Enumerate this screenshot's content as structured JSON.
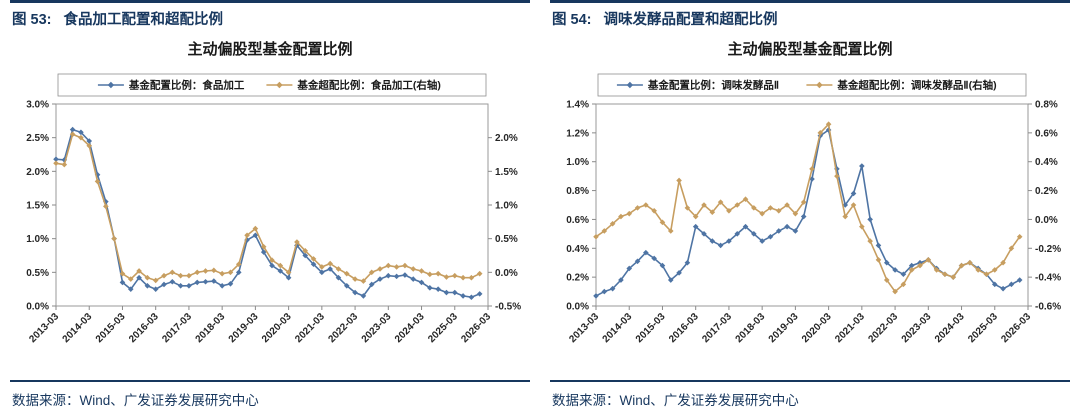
{
  "figures": [
    {
      "number": "图 53:",
      "caption": "食品加工配置和超配比例",
      "source": "数据来源：Wind、广发证券发展研究中心"
    },
    {
      "number": "图 54:",
      "caption": "调味发酵品配置和超配比例",
      "source": "数据来源：Wind、广发证券发展研究中心"
    }
  ],
  "colors": {
    "accent_navy": "#17375e",
    "series_blue": "#4e74a4",
    "series_tan": "#c79e60"
  },
  "chart_data": [
    {
      "type": "line",
      "title": "主动偏股型基金配置比例",
      "legend_position": "top",
      "grid": false,
      "x_axis": {
        "domain": [
          0,
          52
        ],
        "tick_positions": [
          0,
          4,
          8,
          12,
          16,
          20,
          24,
          28,
          32,
          36,
          40,
          44,
          48,
          52
        ],
        "tick_labels": [
          "2013-03",
          "2014-03",
          "2015-03",
          "2016-03",
          "2017-03",
          "2018-03",
          "2019-03",
          "2020-03",
          "2021-03",
          "2022-03",
          "2023-03",
          "2024-03",
          "2025-03",
          "2026-03"
        ]
      },
      "left_axis": {
        "min": 0.0,
        "max": 3.0,
        "tick_values": [
          3.0,
          2.5,
          2.0,
          1.5,
          1.0,
          0.5,
          0.0
        ],
        "tick_labels": [
          "3.0%",
          "2.5%",
          "2.0%",
          "1.5%",
          "1.0%",
          "0.5%",
          "0.0%"
        ]
      },
      "right_axis": {
        "min": -0.5,
        "max": 2.5,
        "tick_values": [
          2.0,
          1.5,
          1.0,
          0.5,
          0.0,
          -0.5
        ],
        "tick_labels": [
          "2.0%",
          "1.5%",
          "1.0%",
          "0.5%",
          "0.0%",
          "-0.5%"
        ]
      },
      "series": [
        {
          "name": "基金配置比例：食品加工",
          "axis": "left",
          "color": "#4e74a4",
          "marker": "diamond",
          "values": [
            2.18,
            2.17,
            2.62,
            2.58,
            2.45,
            1.95,
            1.55,
            1.0,
            0.35,
            0.25,
            0.42,
            0.3,
            0.25,
            0.32,
            0.36,
            0.3,
            0.3,
            0.35,
            0.36,
            0.37,
            0.3,
            0.33,
            0.5,
            0.98,
            1.05,
            0.8,
            0.6,
            0.52,
            0.42,
            0.9,
            0.75,
            0.62,
            0.5,
            0.55,
            0.42,
            0.3,
            0.2,
            0.15,
            0.32,
            0.4,
            0.45,
            0.44,
            0.46,
            0.4,
            0.35,
            0.27,
            0.25,
            0.2,
            0.2,
            0.15,
            0.13,
            0.18
          ]
        },
        {
          "name": "基金超配比例：食品加工(右轴)",
          "axis": "right",
          "color": "#c79e60",
          "marker": "diamond",
          "values": [
            1.62,
            1.6,
            2.05,
            2.0,
            1.88,
            1.35,
            0.98,
            0.5,
            -0.02,
            -0.1,
            0.02,
            -0.08,
            -0.12,
            -0.05,
            0.0,
            -0.05,
            -0.05,
            0.0,
            0.02,
            0.03,
            -0.02,
            0.0,
            0.12,
            0.55,
            0.65,
            0.38,
            0.18,
            0.1,
            0.0,
            0.45,
            0.32,
            0.2,
            0.08,
            0.13,
            0.05,
            -0.02,
            -0.1,
            -0.13,
            0.0,
            0.05,
            0.1,
            0.08,
            0.1,
            0.05,
            0.02,
            -0.03,
            -0.02,
            -0.07,
            -0.05,
            -0.08,
            -0.08,
            -0.02
          ]
        }
      ]
    },
    {
      "type": "line",
      "title": "主动偏股型基金配置比例",
      "legend_position": "top",
      "grid": false,
      "x_axis": {
        "domain": [
          0,
          52
        ],
        "tick_positions": [
          0,
          4,
          8,
          12,
          16,
          20,
          24,
          28,
          32,
          36,
          40,
          44,
          48,
          52
        ],
        "tick_labels": [
          "2013-03",
          "2014-03",
          "2015-03",
          "2016-03",
          "2017-03",
          "2018-03",
          "2019-03",
          "2020-03",
          "2021-03",
          "2022-03",
          "2023-03",
          "2024-03",
          "2025-03",
          "2026-03"
        ]
      },
      "left_axis": {
        "min": 0.0,
        "max": 1.4,
        "tick_values": [
          1.4,
          1.2,
          1.0,
          0.8,
          0.6,
          0.4,
          0.2,
          0.0
        ],
        "tick_labels": [
          "1.4%",
          "1.2%",
          "1.0%",
          "0.8%",
          "0.6%",
          "0.4%",
          "0.2%",
          "0.0%"
        ]
      },
      "right_axis": {
        "min": -0.6,
        "max": 0.8,
        "tick_values": [
          0.8,
          0.6,
          0.4,
          0.2,
          0.0,
          -0.2,
          -0.4,
          -0.6
        ],
        "tick_labels": [
          "0.8%",
          "0.6%",
          "0.4%",
          "0.2%",
          "0.0%",
          "-0.2%",
          "-0.4%",
          "-0.6%"
        ]
      },
      "series": [
        {
          "name": "基金配置比例：调味发酵品Ⅱ",
          "axis": "left",
          "color": "#4e74a4",
          "marker": "diamond",
          "values": [
            0.07,
            0.1,
            0.12,
            0.18,
            0.26,
            0.31,
            0.37,
            0.33,
            0.28,
            0.18,
            0.23,
            0.3,
            0.55,
            0.5,
            0.45,
            0.42,
            0.45,
            0.5,
            0.55,
            0.5,
            0.45,
            0.48,
            0.52,
            0.55,
            0.52,
            0.62,
            0.88,
            1.18,
            1.22,
            0.95,
            0.7,
            0.78,
            0.97,
            0.6,
            0.42,
            0.3,
            0.25,
            0.22,
            0.28,
            0.3,
            0.32,
            0.26,
            0.22,
            0.2,
            0.28,
            0.3,
            0.26,
            0.22,
            0.15,
            0.12,
            0.15,
            0.18
          ]
        },
        {
          "name": "基金超配比例：调味发酵品Ⅱ(右轴)",
          "axis": "right",
          "color": "#c79e60",
          "marker": "diamond",
          "values": [
            -0.12,
            -0.08,
            -0.03,
            0.02,
            0.04,
            0.08,
            0.1,
            0.06,
            -0.02,
            -0.08,
            0.27,
            0.08,
            0.02,
            0.1,
            0.05,
            0.12,
            0.06,
            0.1,
            0.14,
            0.08,
            0.04,
            0.08,
            0.06,
            0.1,
            0.04,
            0.12,
            0.35,
            0.6,
            0.66,
            0.3,
            0.02,
            0.1,
            -0.05,
            -0.15,
            -0.28,
            -0.42,
            -0.5,
            -0.45,
            -0.35,
            -0.32,
            -0.28,
            -0.35,
            -0.38,
            -0.4,
            -0.32,
            -0.3,
            -0.35,
            -0.38,
            -0.35,
            -0.3,
            -0.2,
            -0.12
          ]
        }
      ]
    }
  ]
}
